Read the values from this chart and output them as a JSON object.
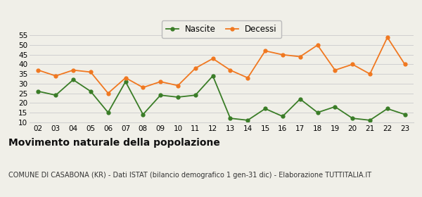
{
  "years": [
    "02",
    "03",
    "04",
    "05",
    "06",
    "07",
    "08",
    "09",
    "10",
    "11",
    "12",
    "13",
    "14",
    "15",
    "16",
    "17",
    "18",
    "19",
    "20",
    "21",
    "22",
    "23"
  ],
  "nascite": [
    26,
    24,
    32,
    26,
    15,
    31,
    14,
    24,
    23,
    24,
    34,
    12,
    11,
    17,
    13,
    22,
    15,
    18,
    12,
    11,
    17,
    14
  ],
  "decessi": [
    37,
    34,
    37,
    36,
    25,
    33,
    28,
    31,
    29,
    38,
    43,
    37,
    33,
    47,
    45,
    44,
    50,
    37,
    40,
    35,
    54,
    40
  ],
  "nascite_color": "#3a7d27",
  "decessi_color": "#f07820",
  "bg_color": "#f0efe8",
  "grid_color": "#d0d0d0",
  "ylim": [
    10,
    55
  ],
  "yticks": [
    10,
    15,
    20,
    25,
    30,
    35,
    40,
    45,
    50,
    55
  ],
  "title": "Movimento naturale della popolazione",
  "subtitle": "COMUNE DI CASABONA (KR) - Dati ISTAT (bilancio demografico 1 gen-31 dic) - Elaborazione TUTTITALIA.IT",
  "legend_nascite": "Nascite",
  "legend_decessi": "Decessi",
  "title_fontsize": 10,
  "subtitle_fontsize": 7,
  "tick_fontsize": 7.5,
  "legend_fontsize": 8.5
}
